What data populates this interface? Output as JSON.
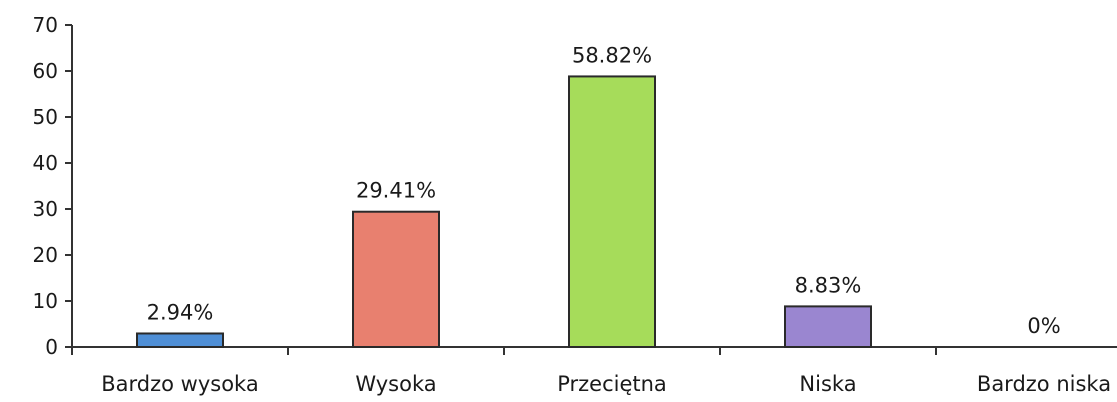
{
  "chart_data": {
    "type": "bar",
    "title": "",
    "xlabel": "",
    "ylabel": "",
    "categories": [
      "Bardzo wysoka",
      "Wysoka",
      "Przeciętna",
      "Niska",
      "Bardzo niska"
    ],
    "values": [
      2.94,
      29.41,
      58.82,
      8.83,
      0
    ],
    "data_labels": [
      "2.94%",
      "29.41%",
      "58.82%",
      "8.83%",
      "0%"
    ],
    "colors": [
      "#4f8fd6",
      "#e8806f",
      "#a6dc5a",
      "#9a86d0",
      "#cccccc"
    ],
    "ylim": [
      0,
      70
    ],
    "yticks": [
      0,
      10,
      20,
      30,
      40,
      50,
      60,
      70
    ],
    "grid": false,
    "legend": "none"
  }
}
